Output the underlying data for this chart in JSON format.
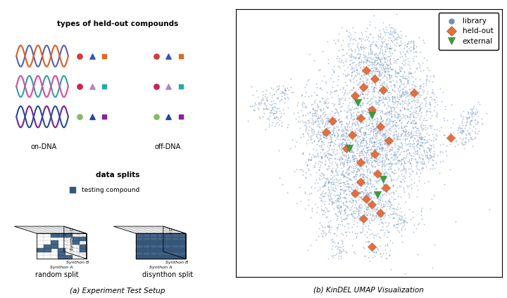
{
  "fig_width": 7.2,
  "fig_height": 4.24,
  "background_color": "#ffffff",
  "caption_a": "(a) Experiment Test Setup",
  "caption_b": "(b) KinDEL UMAP Visualization",
  "panel_a_title1": "types of held-out compounds",
  "panel_a_title2": "data splits",
  "on_dna_label": "on-DNA",
  "off_dna_label": "off-DNA",
  "random_split_label": "random split",
  "disynthon_split_label": "disynthon split",
  "testing_compound_label": "testing compound",
  "legend_labels": [
    "library",
    "held-out",
    "external"
  ],
  "library_color": "#7090bc",
  "heldout_color": "#e07040",
  "external_color": "#3a9e3a",
  "row_colors": [
    {
      "h1": "#d63b3b",
      "h2": "#e06820",
      "h3": "#4466cc",
      "c": "#d63b3b",
      "t": "#3355bb",
      "s": "#e06820"
    },
    {
      "h1": "#cc2255",
      "h2": "#dd55aa",
      "h3": "#22aaaa",
      "c": "#cc2255",
      "t": "#aa88cc",
      "s": "#22aaaa"
    },
    {
      "h1": "#55aa44",
      "h2": "#2244aa",
      "h3": "#882299",
      "c": "#88bb66",
      "t": "#2244aa",
      "s": "#882299"
    }
  ]
}
